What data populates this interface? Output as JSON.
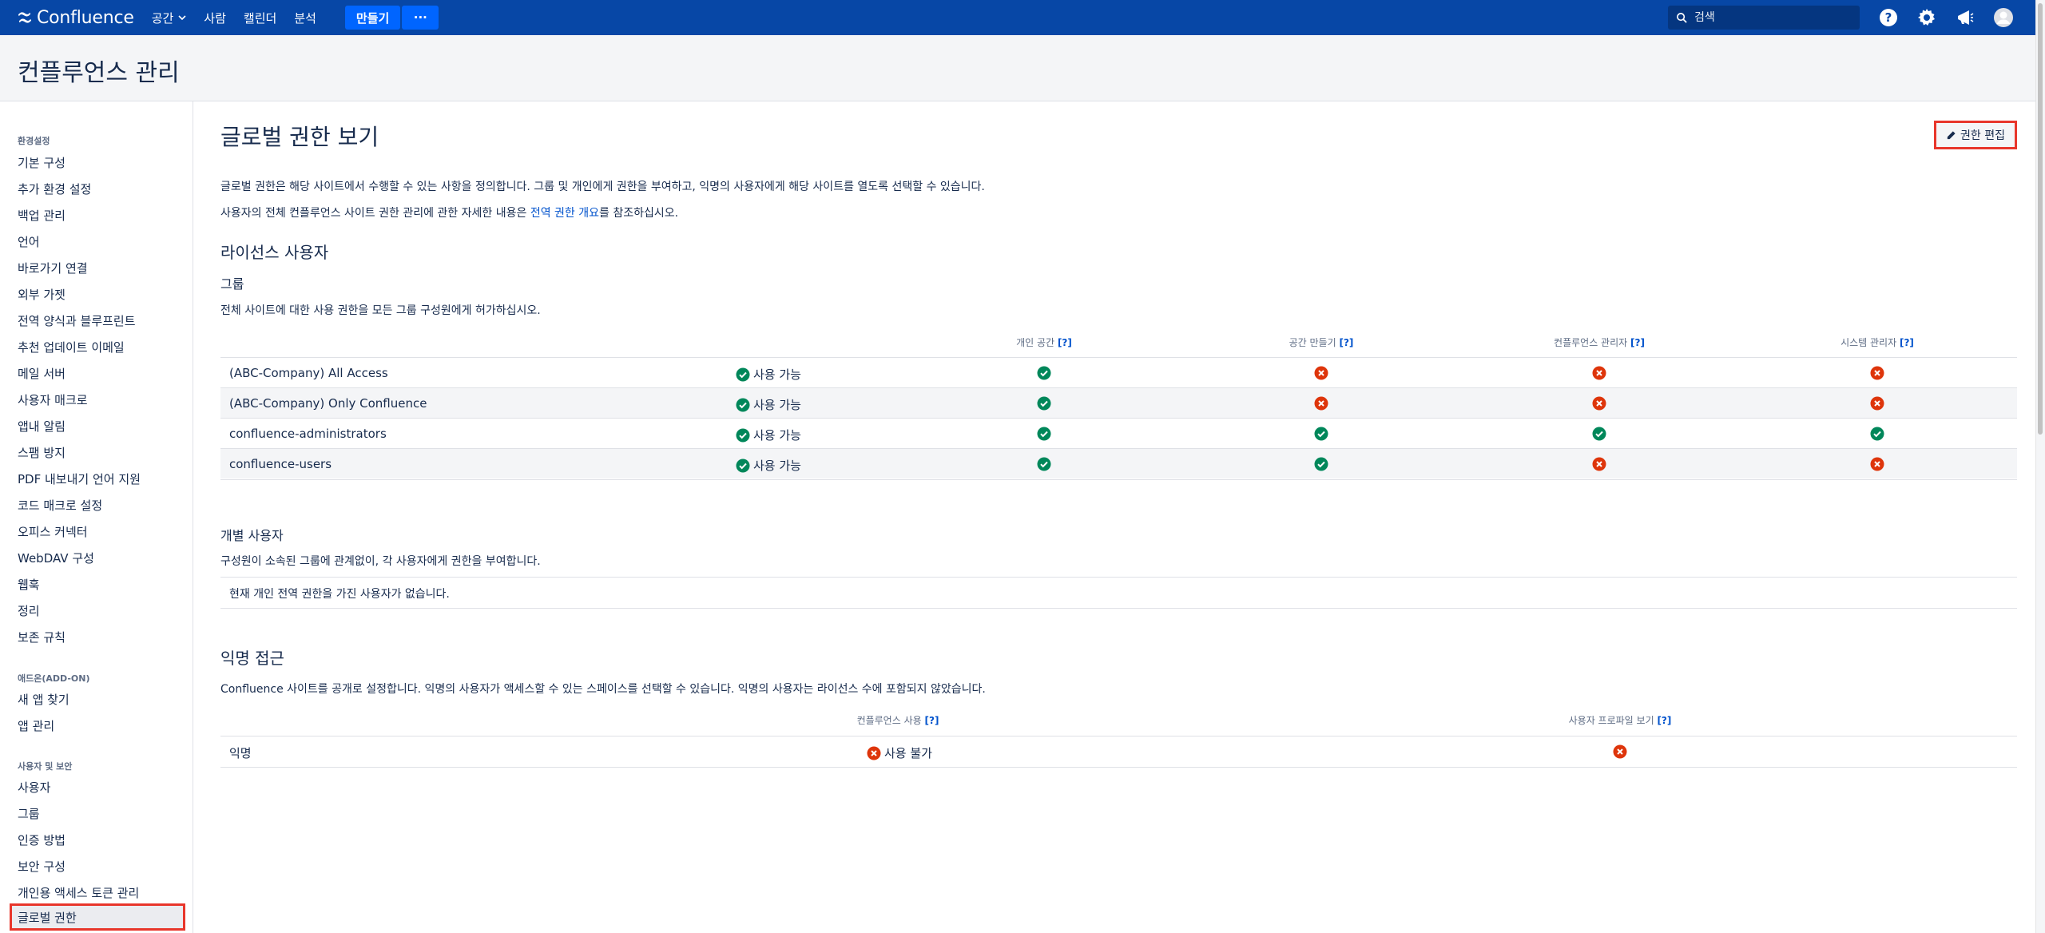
{
  "nav": {
    "logo": "Confluence",
    "items": [
      "공간",
      "사람",
      "캘린더",
      "분석"
    ],
    "create": "만들기",
    "more": "···",
    "search_placeholder": "검색"
  },
  "header": {
    "title": "컨플루언스 관리"
  },
  "sidebar": {
    "sections": [
      {
        "title": "환경설정",
        "items": [
          "기본 구성",
          "추가 환경 설정",
          "백업 관리",
          "언어",
          "바로가기 연결",
          "외부 가젯",
          "전역 양식과 블루프린트",
          "추천 업데이트 이메일",
          "메일 서버",
          "사용자 매크로",
          "앱내 알림",
          "스팸 방지",
          "PDF 내보내기 언어 지원",
          "코드 매크로 설정",
          "오피스 커넥터",
          "WebDAV 구성",
          "웹훅",
          "정리",
          "보존 규칙"
        ]
      },
      {
        "title": "애드온(ADD-ON)",
        "items": [
          "새 앱 찾기",
          "앱 관리"
        ]
      },
      {
        "title": "사용자 및 보안",
        "items": [
          "사용자",
          "그룹",
          "인증 방법",
          "보안 구성",
          "개인용 액세스 토큰 관리",
          "글로벌 권한"
        ]
      }
    ]
  },
  "main": {
    "title": "글로벌 권한 보기",
    "edit_button": "권한 편집",
    "intro1": "글로벌 권한은 해당 사이트에서 수행할 수 있는 사항을 정의합니다. 그룹 및 개인에게 권한을 부여하고, 익명의 사용자에게 해당 사이트를 열도록 선택할 수 있습니다.",
    "intro2_pre": "사용자의 전체 컨플루언스 사이트 권한 관리에 관한 자세한 내용은 ",
    "intro2_link": "전역 권한 개요",
    "intro2_post": "를 참조하십시오.",
    "licensed_heading": "라이선스 사용자",
    "groups_heading": "그룹",
    "groups_desc": "전체 사이트에 대한 사용 권한을 모든 그룹 구성원에게 허가하십시오.",
    "help_mark": "[?]",
    "columns": [
      "개인 공간",
      "공간 만들기",
      "컨플루언스 관리자",
      "시스템 관리자"
    ],
    "groups": [
      {
        "name": "(ABC-Company) All Access",
        "status": "사용 가능",
        "perms": [
          true,
          false,
          false,
          false
        ]
      },
      {
        "name": "(ABC-Company) Only Confluence",
        "status": "사용 가능",
        "perms": [
          true,
          false,
          false,
          false
        ]
      },
      {
        "name": "confluence-administrators",
        "status": "사용 가능",
        "perms": [
          true,
          true,
          true,
          true
        ]
      },
      {
        "name": "confluence-users",
        "status": "사용 가능",
        "perms": [
          true,
          true,
          false,
          false
        ]
      }
    ],
    "individual_heading": "개별 사용자",
    "individual_desc": "구성원이 소속된 그룹에 관계없이, 각 사용자에게 권한을 부여합니다.",
    "individual_empty": "현재 개인 전역 권한을 가진 사용자가 없습니다.",
    "anon_heading": "익명 접근",
    "anon_desc": "Confluence 사이트를 공개로 설정합니다. 익명의 사용자가 액세스할 수 있는 스페이스를 선택할 수 있습니다. 익명의 사용자는 라이선스 수에 포함되지 않았습니다.",
    "anon_columns": [
      "컨플루언스 사용",
      "사용자 프로파일 보기"
    ],
    "anon_row": {
      "name": "익명",
      "status": "사용 불가",
      "profile": false
    }
  },
  "colors": {
    "nav": "#0747a6",
    "accent": "#0065ff",
    "ok": "#00875a",
    "no": "#de350b",
    "highlight": "#e8362b"
  }
}
